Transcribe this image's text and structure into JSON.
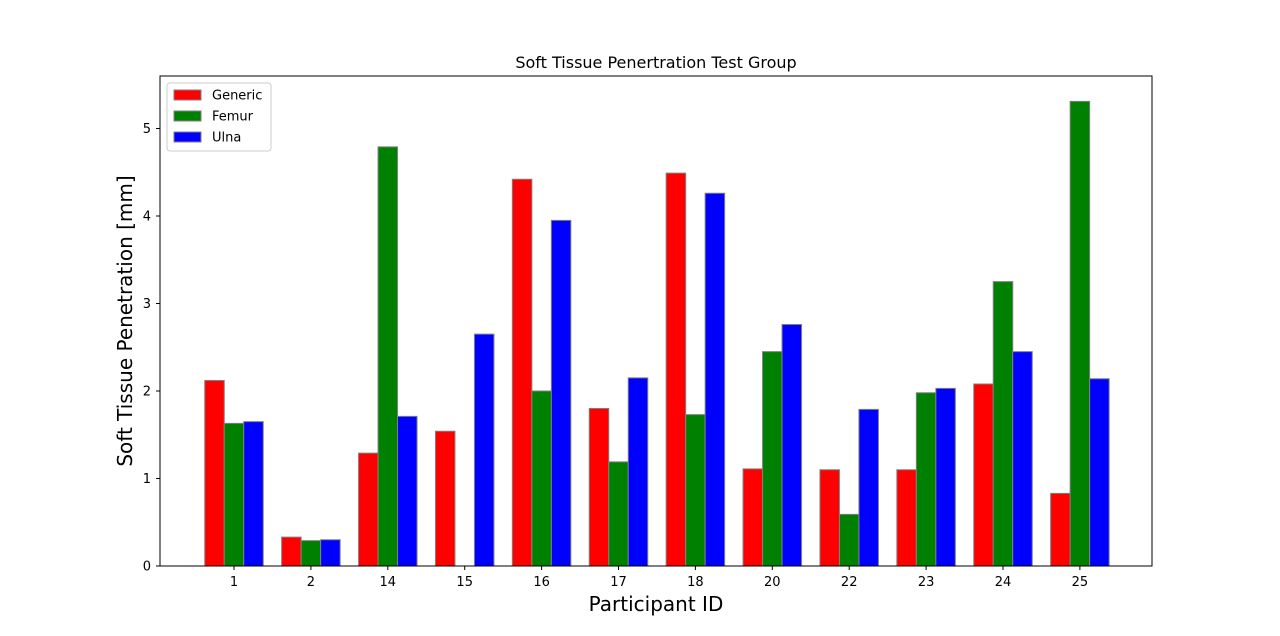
{
  "chart_data": {
    "type": "bar",
    "title": "Soft Tissue Penertration Test Group",
    "xlabel": "Participant ID",
    "ylabel": "Soft Tissue Penetration [mm]",
    "categories": [
      "1",
      "2",
      "14",
      "15",
      "16",
      "17",
      "18",
      "20",
      "22",
      "23",
      "24",
      "25"
    ],
    "series": [
      {
        "name": "Generic",
        "color": "#ff0000",
        "values": [
          2.12,
          0.33,
          1.29,
          1.54,
          4.42,
          1.8,
          4.49,
          1.11,
          1.1,
          1.1,
          2.08,
          0.83
        ]
      },
      {
        "name": "Femur",
        "color": "#008000",
        "values": [
          1.63,
          0.29,
          4.79,
          0.0,
          2.0,
          1.19,
          1.73,
          2.45,
          0.59,
          1.98,
          3.25,
          5.31
        ]
      },
      {
        "name": "Ulna",
        "color": "#0000ff",
        "values": [
          1.65,
          0.3,
          1.71,
          2.65,
          3.95,
          2.15,
          4.26,
          2.76,
          1.79,
          2.03,
          2.45,
          2.14
        ]
      }
    ],
    "ylim": [
      0,
      5.6
    ],
    "yticks": [
      "0",
      "1",
      "2",
      "3",
      "4",
      "5"
    ],
    "legend_position": "top-left",
    "grid": false
  }
}
